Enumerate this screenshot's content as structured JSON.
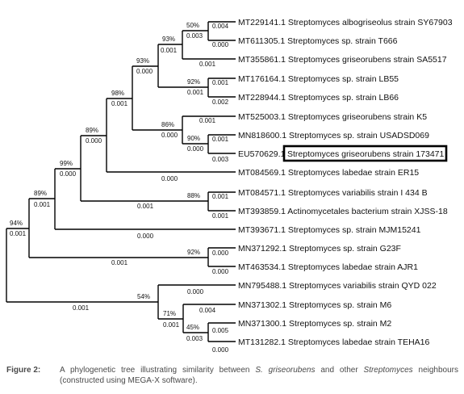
{
  "tree": {
    "taxa": [
      "MT229141.1 Streptomyces albogriseolus strain SY67903",
      "MT611305.1 Streptomyces sp. strain T666",
      "MT355861.1 Streptomyces griseorubens strain SA5517",
      "MT176164.1 Streptomyces sp. strain LB55",
      "MT228944.1 Streptomyces sp. strain LB66",
      "MT525003.1 Streptomyces griseorubens strain K5",
      "MN818600.1 Streptomyces sp. strain USADSD069",
      "EU570629.1",
      "MT084569.1 Streptomyces labedae strain ER15",
      "MT084571.1 Streptomyces variabilis strain I 434 B",
      "MT393859.1 Actinomycetales bacterium strain XJSS-18",
      "MT393671.1 Streptomyces sp. strain MJM15241",
      "MN371292.1 Streptomyces sp. strain G23F",
      "MT463534.1 Streptomyces labedae strain AJR1",
      "MN795488.1 Streptomyces variabilis strain QYD 022",
      "MN371302.1 Streptomyces sp. strain M6",
      "MN371300.1 Streptomyces sp. strain M2",
      "MT131282.1 Streptomyces labedae strain TEHA16"
    ],
    "highlighted_label": "Streptomyces griseorubens strain 173471",
    "bootstrap": {
      "a": "50%",
      "b": "93%",
      "c": "93%",
      "d": "92%",
      "e": "98%",
      "f": "86%",
      "g": "90%",
      "h": "89%",
      "i": "99%",
      "j": "88%",
      "k": "89%",
      "l": "94%",
      "m": "92%",
      "n": "54%",
      "o": "71%",
      "p": "45%"
    },
    "branch_lengths": {
      "a": "0.003",
      "b": "0.001",
      "c": "0.000",
      "d": "0.001",
      "e": "0.001",
      "f": "0.000",
      "g": "0.000",
      "h": "0.000",
      "i": "0.000",
      "j": "0.001",
      "k": "0.001",
      "l": "0.001",
      "m": "0.001",
      "n": "0.001",
      "o": "0.001",
      "p": "0.003",
      "t1": "0.004",
      "t2": "0.000",
      "t3": "0.001",
      "t4": "0.001",
      "t5": "0.002",
      "t6": "0.001",
      "t7": "0.001",
      "t8": "0.003",
      "t9": "0.000",
      "t10": "0.001",
      "t11": "0.001",
      "t12": "0.000",
      "t13": "0.000",
      "t14": "0.000",
      "t15": "0.000",
      "t16": "0.004",
      "t17": "0.005",
      "t18": "0.000"
    }
  },
  "caption": {
    "label": "Figure 2:",
    "text_1": "A phylogenetic tree illustrating similarity between ",
    "italic_1": "S. griseorubens",
    "text_2": " and other ",
    "italic_2": "Streptomyces",
    "text_3": " neighbours",
    "text_4": "(constructed using MEGA-X software)."
  }
}
